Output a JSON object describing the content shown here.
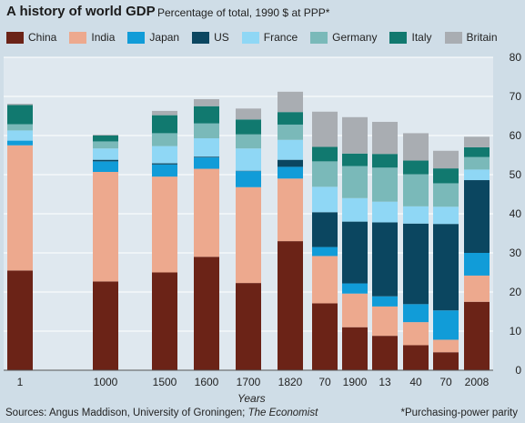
{
  "title": "A history of world GDP",
  "subtitle": "Percentage of total, 1990 $  at PPP*",
  "footer": {
    "source_prefix": "Sources: Angus Maddison, University of Groningen; ",
    "source_italic": "The Economist",
    "note": "*Purchasing-power parity"
  },
  "colors": {
    "background": "#cfdde7",
    "plot_background": "#dfe8ef",
    "grid": "#ffffff"
  },
  "chart_data": {
    "type": "bar",
    "stacked": true,
    "xlabel": "Years",
    "ylabel": "",
    "ylim": [
      0,
      80
    ],
    "yticks": [
      0,
      10,
      20,
      30,
      40,
      50,
      60,
      70,
      80
    ],
    "y_axis_position": "right",
    "grid": true,
    "legend_position": "top",
    "categories": [
      "1",
      "1000",
      "1500",
      "1600",
      "1700",
      "1820",
      "70",
      "1900",
      "13",
      "40",
      "70",
      "2008"
    ],
    "series": [
      {
        "name": "China",
        "color": "#6b2317",
        "values": [
          25.5,
          22.7,
          25.0,
          29.0,
          22.3,
          33.0,
          17.1,
          11.0,
          8.8,
          6.4,
          4.6,
          17.5
        ]
      },
      {
        "name": "India",
        "color": "#eda98e",
        "values": [
          32.0,
          28.0,
          24.5,
          22.5,
          24.5,
          16.0,
          12.1,
          8.6,
          7.5,
          5.9,
          3.2,
          6.7
        ]
      },
      {
        "name": "Japan",
        "color": "#119cd8",
        "values": [
          1.2,
          2.7,
          3.1,
          2.9,
          4.1,
          3.0,
          2.3,
          2.6,
          2.6,
          4.6,
          7.5,
          5.8
        ]
      },
      {
        "name": "US",
        "color": "#0b4660",
        "values": [
          0,
          0.4,
          0.3,
          0.2,
          0.1,
          1.8,
          8.9,
          15.8,
          18.9,
          20.6,
          22.1,
          18.6
        ]
      },
      {
        "name": "France",
        "color": "#8fd7f5",
        "values": [
          2.6,
          2.9,
          4.4,
          4.7,
          5.7,
          5.1,
          6.5,
          6.0,
          5.3,
          4.4,
          4.4,
          2.7
        ]
      },
      {
        "name": "Germany",
        "color": "#7ab9b9",
        "values": [
          1.6,
          1.8,
          3.3,
          3.8,
          3.6,
          3.9,
          6.5,
          8.2,
          8.7,
          8.2,
          6.0,
          3.2
        ]
      },
      {
        "name": "Italy",
        "color": "#11796f",
        "values": [
          4.9,
          1.5,
          4.6,
          4.4,
          3.8,
          3.2,
          3.7,
          3.2,
          3.5,
          3.5,
          3.8,
          2.5
        ]
      },
      {
        "name": "Britain",
        "color": "#a9adb2",
        "values": [
          0.3,
          0.2,
          1.1,
          1.8,
          2.8,
          5.2,
          9.0,
          9.3,
          8.2,
          7.0,
          4.5,
          2.7
        ]
      }
    ]
  }
}
